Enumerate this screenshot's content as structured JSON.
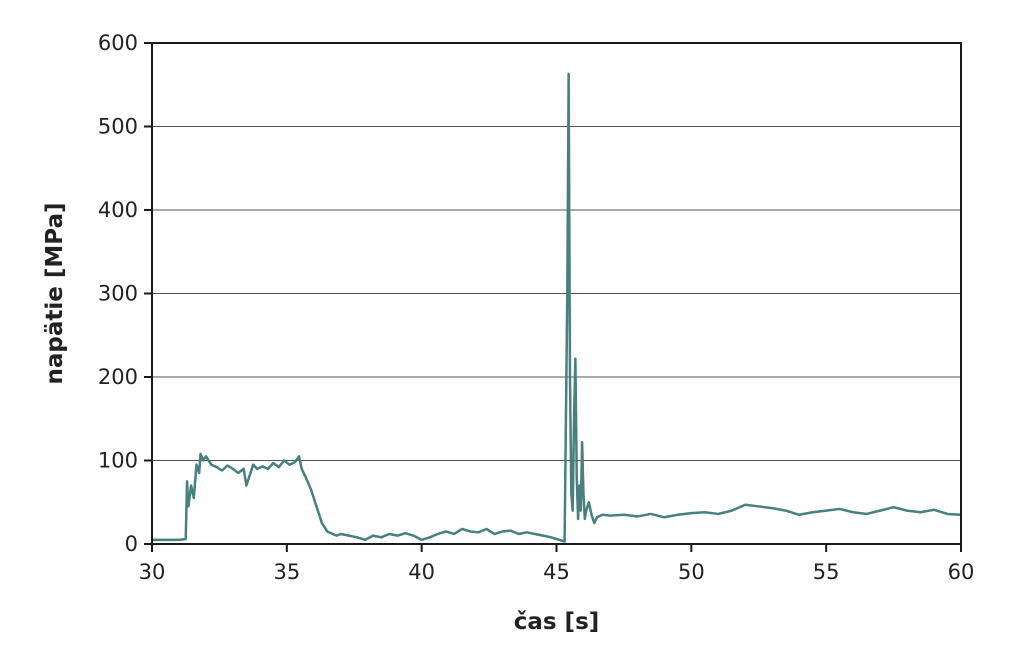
{
  "chart_data": {
    "type": "line",
    "title": "",
    "xlabel": "čas [s]",
    "ylabel": "napätie [MPa]",
    "xlim": [
      30,
      60
    ],
    "ylim": [
      0,
      600
    ],
    "xticks": [
      "30",
      "35",
      "40",
      "45",
      "50",
      "55",
      "60"
    ],
    "yticks": [
      "0",
      "100",
      "200",
      "300",
      "400",
      "500",
      "600"
    ],
    "grid": "horizontal",
    "legend": "none",
    "line_color": "#4a7f80",
    "series": [
      {
        "x": [
          30.0,
          30.5,
          31.0,
          31.25,
          31.3,
          31.35,
          31.45,
          31.55,
          31.65,
          31.75,
          31.8,
          31.9,
          32.0,
          32.2,
          32.4,
          32.6,
          32.8,
          33.0,
          33.2,
          33.4,
          33.5,
          33.6,
          33.75,
          33.9,
          34.1,
          34.3,
          34.5,
          34.7,
          34.9,
          35.1,
          35.3,
          35.45,
          35.55,
          35.7,
          35.9,
          36.1,
          36.3,
          36.5,
          36.7,
          36.85,
          37.0,
          37.3,
          37.6,
          37.9,
          38.2,
          38.5,
          38.8,
          39.1,
          39.4,
          39.7,
          40.0,
          40.3,
          40.6,
          40.9,
          41.2,
          41.5,
          41.8,
          42.1,
          42.4,
          42.7,
          43.0,
          43.3,
          43.6,
          43.9,
          44.2,
          44.5,
          44.8,
          45.1,
          45.3,
          45.4,
          45.45,
          45.5,
          45.55,
          45.6,
          45.65,
          45.7,
          45.75,
          45.8,
          45.85,
          45.9,
          45.95,
          46.0,
          46.05,
          46.1,
          46.2,
          46.3,
          46.4,
          46.5,
          46.7,
          47.0,
          47.5,
          48.0,
          48.5,
          49.0,
          49.5,
          50.0,
          50.5,
          51.0,
          51.5,
          52.0,
          52.5,
          53.0,
          53.5,
          54.0,
          54.5,
          55.0,
          55.5,
          56.0,
          56.5,
          57.0,
          57.5,
          58.0,
          58.5,
          59.0,
          59.5,
          60.0
        ],
        "y": [
          5,
          5,
          5,
          6,
          75,
          45,
          70,
          55,
          95,
          85,
          108,
          100,
          105,
          95,
          92,
          88,
          94,
          90,
          85,
          90,
          70,
          80,
          95,
          90,
          93,
          90,
          97,
          92,
          100,
          95,
          98,
          105,
          90,
          80,
          65,
          45,
          25,
          15,
          12,
          10,
          12,
          10,
          8,
          5,
          10,
          8,
          12,
          10,
          13,
          10,
          5,
          8,
          12,
          15,
          12,
          18,
          15,
          14,
          18,
          12,
          15,
          16,
          12,
          14,
          12,
          10,
          8,
          5,
          3,
          300,
          563,
          200,
          60,
          40,
          150,
          222,
          80,
          30,
          70,
          40,
          122,
          60,
          30,
          40,
          50,
          35,
          25,
          32,
          35,
          34,
          35,
          33,
          36,
          32,
          35,
          37,
          38,
          36,
          40,
          47,
          45,
          43,
          40,
          35,
          38,
          40,
          42,
          38,
          36,
          40,
          44,
          40,
          38,
          41,
          36,
          35
        ]
      }
    ]
  }
}
